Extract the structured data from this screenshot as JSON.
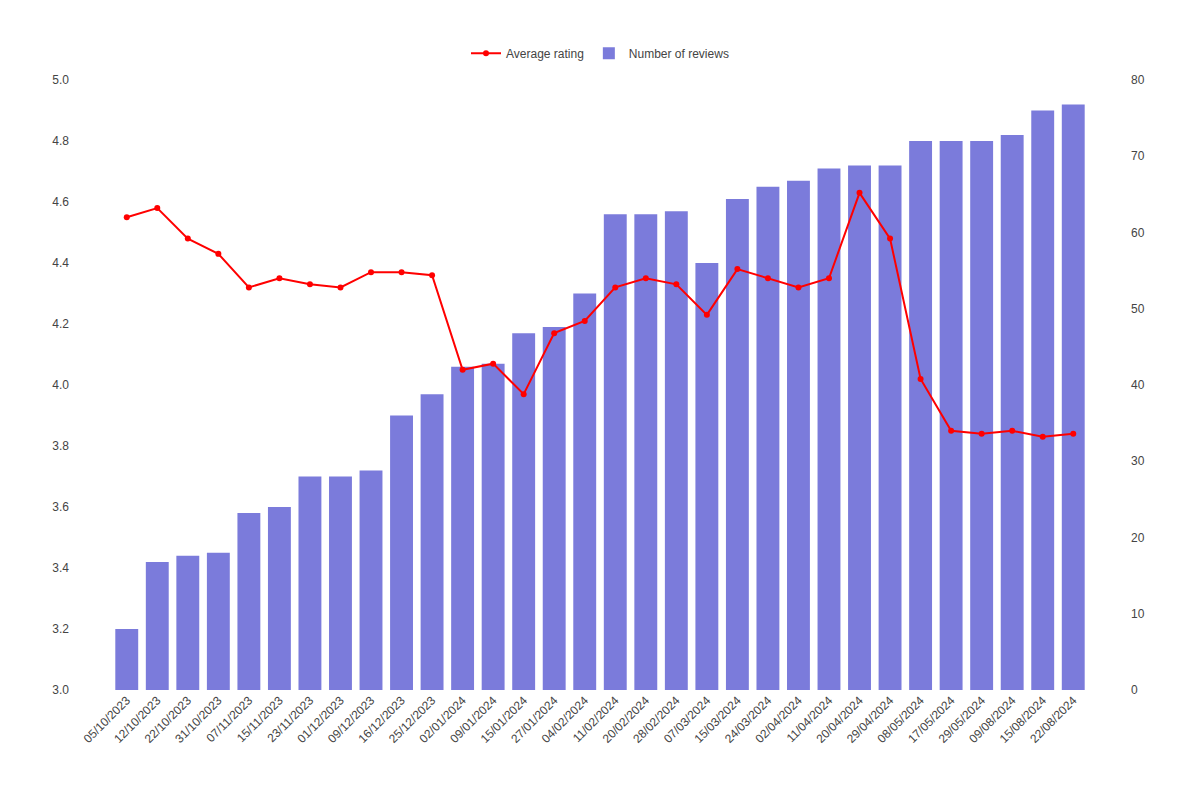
{
  "chart_data": {
    "type": "bar",
    "categories": [
      "05/10/2023",
      "12/10/2023",
      "22/10/2023",
      "31/10/2023",
      "07/11/2023",
      "15/11/2023",
      "23/11/2023",
      "01/12/2023",
      "09/12/2023",
      "16/12/2023",
      "25/12/2023",
      "02/01/2024",
      "09/01/2024",
      "15/01/2024",
      "27/01/2024",
      "04/02/2024",
      "11/02/2024",
      "20/02/2024",
      "28/02/2024",
      "07/03/2024",
      "15/03/2024",
      "24/03/2024",
      "02/04/2024",
      "11/04/2024",
      "20/04/2024",
      "29/04/2024",
      "08/05/2024",
      "17/05/2024",
      "29/05/2024",
      "09/08/2024",
      "15/08/2024",
      "22/08/2024"
    ],
    "series": [
      {
        "name": "Average rating",
        "type": "line",
        "color": "#ff0000",
        "marker": "circle",
        "values": [
          4.55,
          4.58,
          4.48,
          4.43,
          4.32,
          4.35,
          4.33,
          4.32,
          4.37,
          4.37,
          4.36,
          4.05,
          4.07,
          3.97,
          4.17,
          4.21,
          4.32,
          4.35,
          4.33,
          4.23,
          4.38,
          4.35,
          4.32,
          4.35,
          4.63,
          4.48,
          4.02,
          3.85,
          3.84,
          3.85,
          3.83,
          3.84
        ]
      },
      {
        "name": "Number of reviews",
        "type": "bar",
        "color": "#7b7bdb",
        "values": [
          3.2,
          3.42,
          3.44,
          3.45,
          3.58,
          3.6,
          3.7,
          3.7,
          3.72,
          3.9,
          3.97,
          4.06,
          4.07,
          4.17,
          4.19,
          4.3,
          4.56,
          4.56,
          4.57,
          4.4,
          4.61,
          4.65,
          4.67,
          4.71,
          4.72,
          4.72,
          4.8,
          4.8,
          4.8,
          4.82,
          4.9,
          4.92
        ]
      }
    ],
    "ylim": [
      3.0,
      5.0
    ],
    "yticks": [
      {
        "value": 3.0,
        "label": "3.0"
      },
      3.2,
      3.4,
      3.6,
      3.8,
      {
        "value": 4.0,
        "label": "4.0"
      },
      4.2,
      4.4,
      4.6,
      4.8,
      {
        "value": 5.0,
        "label": "5.0"
      }
    ],
    "y2lim": [
      0,
      80
    ],
    "y2ticks": [
      0,
      10,
      20,
      30,
      40,
      50,
      60,
      70,
      80
    ],
    "grid": false,
    "legend": "top"
  }
}
